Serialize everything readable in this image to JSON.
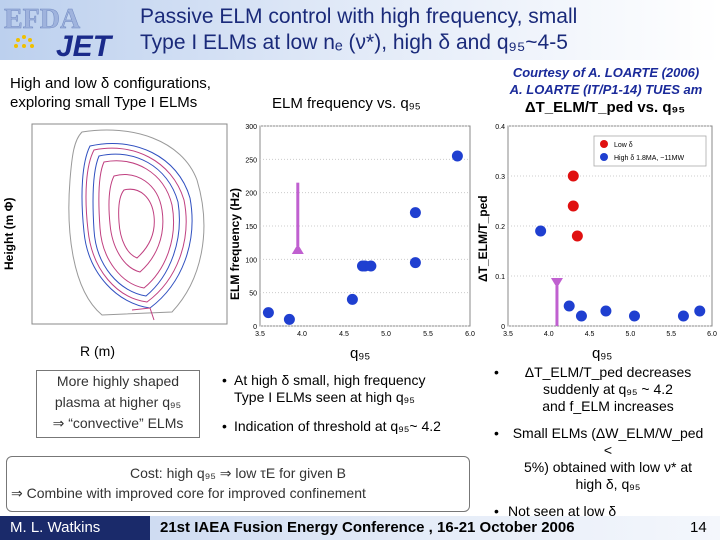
{
  "header": {
    "title_line1": "Passive ELM control with  high frequency, small",
    "title_line2": "Type I ELMs at low nₑ (ν*), high δ and q₉₅~4-5",
    "logo_text": "EFDA JET"
  },
  "left": {
    "heading_line1": "High and low δ configurations,",
    "heading_line2": "exploring small Type I ELMs",
    "ylabel": "Height   (m Φ)",
    "xlabel": "R (m)",
    "box_line1": "More highly shaped",
    "box_line2": "plasma at higher q₉₅",
    "box_line3": "⇒ “convective” ELMs"
  },
  "middle": {
    "heading": "ELM frequency vs. q₉₅",
    "ylabel": "ELM frequency (Hz)",
    "xlabel": "q₉₅",
    "bullet1_line1": "At high δ small, high frequency",
    "bullet1_line2": "Type I ELMs seen at high q₉₅",
    "bullet2": "Indication of threshold at q₉₅~ 4.2"
  },
  "right": {
    "credit_line1": "Courtesy of A. LOARTE (2006)",
    "credit_line2": "A. LOARTE (IT/P1-14) TUES am",
    "heading": "ΔT_ELM/T_ped vs. q₉₅",
    "ylabel": "ΔT_ELM/T_ped",
    "xlabel": "q₉₅",
    "legend_low": "Low δ",
    "legend_high": "High δ 1.8MA, ~11MW",
    "bullet1_line1": "ΔT_ELM/T_ped decreases",
    "bullet1_line2": "suddenly at q₉₅ ~ 4.2",
    "bullet1_line3": "and f_ELM increases",
    "bullet2_line1": "Small ELMs (ΔW_ELM/W_ped <",
    "bullet2_line2": "5%) obtained with low ν* at",
    "bullet2_line3": "high δ, q₉₅",
    "bullet3": "Not seen at low δ"
  },
  "cost": {
    "line1": "Cost: high q₉₅ ⇒  low τE for given B",
    "line2": "⇒ Combine with improved core for improved confinement"
  },
  "footer": {
    "author": "M. L. Watkins",
    "conference": "21st IAEA Fusion Energy Conference , 16-21 October 2006",
    "page": "14"
  },
  "colors": {
    "blue": "#1f3fd0",
    "red": "#e01010",
    "arrow": "#c060d0"
  },
  "chart_data": [
    {
      "type": "scatter",
      "title": "ELM frequency vs. q95",
      "xlabel": "q95",
      "ylabel": "ELM frequency (Hz)",
      "xlim": [
        3.5,
        6.0
      ],
      "ylim": [
        0,
        300
      ],
      "xticks": [
        "3.5",
        "4.0",
        "4.5",
        "5.0",
        "5.5",
        "6.0"
      ],
      "yticks": [
        "0",
        "50",
        "100",
        "150",
        "200",
        "250",
        "300"
      ],
      "series": [
        {
          "name": "High δ",
          "color": "blue",
          "x": [
            3.6,
            3.85,
            4.6,
            4.72,
            4.75,
            4.82,
            5.35,
            5.35,
            5.85
          ],
          "y": [
            20,
            10,
            40,
            90,
            90,
            90,
            170,
            95,
            255
          ]
        }
      ]
    },
    {
      "type": "scatter",
      "title": "ΔT_ELM/T_ped vs. q95",
      "xlabel": "q95",
      "ylabel": "ΔT_ELM/T_ped",
      "xlim": [
        3.5,
        6.0
      ],
      "ylim": [
        0,
        0.4
      ],
      "xticks": [
        "3.5",
        "4.0",
        "4.5",
        "5.0",
        "5.5",
        "6.0"
      ],
      "yticks": [
        "0",
        "0.1",
        "0.2",
        "0.3",
        "0.4"
      ],
      "series": [
        {
          "name": "Low δ",
          "color": "red",
          "x": [
            4.3,
            4.3,
            4.35
          ],
          "y": [
            0.3,
            0.24,
            0.18
          ]
        },
        {
          "name": "High δ",
          "color": "blue",
          "x": [
            3.9,
            4.25,
            4.4,
            4.7,
            5.05,
            5.65,
            5.85
          ],
          "y": [
            0.19,
            0.04,
            0.02,
            0.03,
            0.02,
            0.02,
            0.03
          ]
        }
      ]
    }
  ]
}
